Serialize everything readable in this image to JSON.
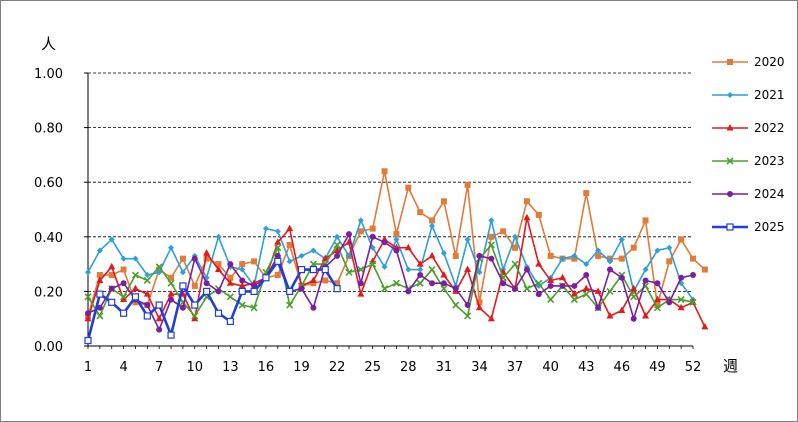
{
  "chart_data": {
    "type": "line",
    "y_unit_label": "人",
    "x_unit_label": "週",
    "ylim": [
      0,
      1.0
    ],
    "y_ticks": [
      "0.00",
      "0.20",
      "0.40",
      "0.60",
      "0.80",
      "1.00"
    ],
    "y_tick_values": [
      0,
      0.2,
      0.4,
      0.6,
      0.8,
      1.0
    ],
    "x_ticks": [
      "1",
      "4",
      "7",
      "10",
      "13",
      "16",
      "19",
      "22",
      "25",
      "28",
      "31",
      "34",
      "37",
      "40",
      "43",
      "46",
      "49",
      "52"
    ],
    "xlim": [
      1,
      52
    ],
    "grid": "horizontal dashed",
    "legend_position": "right",
    "series": [
      {
        "name": "2020",
        "color": "#e07b39",
        "marker": "square",
        "values": [
          0.11,
          0.26,
          0.26,
          0.28,
          0.16,
          0.15,
          0.28,
          0.25,
          0.32,
          0.22,
          0.32,
          0.3,
          0.25,
          0.3,
          0.31,
          0.25,
          0.26,
          0.37,
          0.22,
          0.23,
          0.24,
          0.23,
          0.33,
          0.42,
          0.43,
          0.64,
          0.41,
          0.58,
          0.49,
          0.46,
          0.53,
          0.33,
          0.59,
          0.16,
          0.4,
          0.42,
          0.36,
          0.53,
          0.48,
          0.33,
          0.32,
          0.32,
          0.56,
          0.33,
          0.32,
          0.32,
          0.36,
          0.46,
          0.15,
          0.31,
          0.39,
          0.32,
          0.28
        ]
      },
      {
        "name": "2021",
        "color": "#2e9fd8",
        "marker": "diamond",
        "values": [
          0.27,
          0.35,
          0.39,
          0.32,
          0.32,
          0.26,
          0.27,
          0.36,
          0.27,
          0.33,
          0.25,
          0.4,
          0.29,
          0.28,
          0.22,
          0.43,
          0.42,
          0.31,
          0.33,
          0.35,
          0.32,
          0.4,
          0.33,
          0.46,
          0.36,
          0.29,
          0.39,
          0.28,
          0.28,
          0.44,
          0.34,
          0.22,
          0.39,
          0.27,
          0.46,
          0.28,
          0.4,
          0.29,
          0.22,
          0.25,
          0.32,
          0.33,
          0.3,
          0.35,
          0.31,
          0.39,
          0.2,
          0.28,
          0.35,
          0.36,
          0.23,
          0.17
        ]
      },
      {
        "name": "2022",
        "color": "#e31a1c",
        "marker": "triangle",
        "values": [
          0.1,
          0.24,
          0.29,
          0.17,
          0.21,
          0.19,
          0.1,
          0.19,
          0.19,
          0.1,
          0.34,
          0.28,
          0.23,
          0.22,
          0.23,
          0.25,
          0.38,
          0.43,
          0.22,
          0.24,
          0.32,
          0.35,
          0.38,
          0.19,
          0.31,
          0.39,
          0.36,
          0.36,
          0.3,
          0.33,
          0.26,
          0.2,
          0.28,
          0.14,
          0.1,
          0.27,
          0.21,
          0.47,
          0.3,
          0.24,
          0.25,
          0.19,
          0.21,
          0.2,
          0.11,
          0.13,
          0.21,
          0.11,
          0.17,
          0.17,
          0.14,
          0.16,
          0.07
        ]
      },
      {
        "name": "2023",
        "color": "#4aa02c",
        "marker": "x",
        "values": [
          0.18,
          0.11,
          0.21,
          0.18,
          0.26,
          0.24,
          0.29,
          0.23,
          0.16,
          0.11,
          0.18,
          0.21,
          0.18,
          0.15,
          0.14,
          0.27,
          0.36,
          0.15,
          0.22,
          0.3,
          0.3,
          0.37,
          0.27,
          0.28,
          0.3,
          0.21,
          0.23,
          0.21,
          0.23,
          0.28,
          0.21,
          0.15,
          0.11,
          0.32,
          0.37,
          0.25,
          0.3,
          0.21,
          0.23,
          0.17,
          0.22,
          0.17,
          0.19,
          0.14,
          0.2,
          0.26,
          0.18,
          0.22,
          0.14,
          0.17,
          0.17,
          0.16
        ]
      },
      {
        "name": "2024",
        "color": "#7b1fa2",
        "marker": "circle",
        "values": [
          0.12,
          0.14,
          0.21,
          0.23,
          0.17,
          0.15,
          0.06,
          0.17,
          0.14,
          0.32,
          0.23,
          0.2,
          0.3,
          0.24,
          0.22,
          0.25,
          0.33,
          0.2,
          0.21,
          0.14,
          0.29,
          0.33,
          0.41,
          0.23,
          0.4,
          0.38,
          0.35,
          0.2,
          0.26,
          0.23,
          0.23,
          0.21,
          0.15,
          0.33,
          0.32,
          0.23,
          0.21,
          0.28,
          0.19,
          0.22,
          0.22,
          0.22,
          0.26,
          0.14,
          0.28,
          0.25,
          0.1,
          0.24,
          0.23,
          0.16,
          0.25,
          0.26
        ]
      },
      {
        "name": "2025",
        "color": "#1f3fd8",
        "marker": "open-square",
        "values": [
          0.02,
          0.19,
          0.16,
          0.12,
          0.18,
          0.11,
          0.15,
          0.04,
          0.22,
          0.15,
          0.2,
          0.12,
          0.09,
          0.2,
          0.2,
          0.25,
          0.31,
          0.2,
          0.28,
          0.28,
          0.28,
          0.21
        ]
      }
    ]
  }
}
